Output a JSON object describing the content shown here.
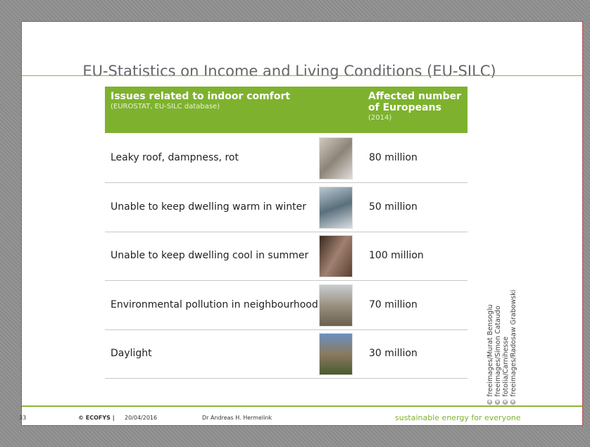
{
  "header": {
    "title": "EU-Statistics on Income and Living Conditions (EU-SILC)"
  },
  "table": {
    "columns": [
      {
        "title": "Issues related to indoor comfort",
        "subtitle": "(EUROSTAT, EU-SILC database)"
      },
      {
        "title": "Affected number of Europeans",
        "subtitle": "(2014)"
      }
    ],
    "rows": [
      [
        "Leaky roof, dampness, rot",
        "80 million"
      ],
      [
        "Unable to keep dwelling warm in winter",
        "50 million"
      ],
      [
        "Unable to keep dwelling cool in summer",
        "100 million"
      ],
      [
        "Environmental pollution in neighbourhood",
        "70 million"
      ],
      [
        "Daylight",
        "30 million"
      ]
    ]
  },
  "credits": [
    "© freeimages/Murat Bensoglu",
    "© freeimages/Simon Cataudo",
    "© fotolia/Carnihesse",
    "© freeimages/Radosaw Grabowski"
  ],
  "footer": {
    "page": "33",
    "company": "© ECOFYS |",
    "date": "20/04/2016",
    "author": "Dr Andreas H. Hermelink",
    "slogan": "sustainable energy for everyone"
  }
}
